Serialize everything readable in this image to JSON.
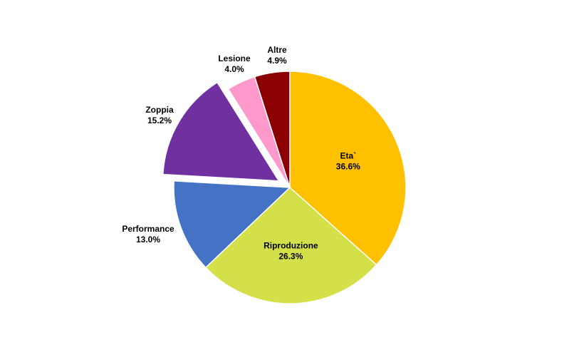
{
  "chart_data": {
    "type": "pie",
    "title": "",
    "slices": [
      {
        "name": "Eta`",
        "value": 36.6,
        "label": "36.6%",
        "color": "#FFC000",
        "exploded": false,
        "label_position": "inside"
      },
      {
        "name": "Riproduzione",
        "value": 26.3,
        "label": "26.3%",
        "color": "#D4E04A",
        "exploded": false,
        "label_position": "inside"
      },
      {
        "name": "Performance",
        "value": 13.0,
        "label": "13.0%",
        "color": "#4472C4",
        "exploded": false,
        "label_position": "outside"
      },
      {
        "name": "Zoppia",
        "value": 15.2,
        "label": "15.2%",
        "color": "#7030A0",
        "exploded": true,
        "label_position": "outside"
      },
      {
        "name": "Lesione",
        "value": 4.0,
        "label": "4.0%",
        "color": "#FF99CC",
        "exploded": false,
        "label_position": "outside"
      },
      {
        "name": "Altre",
        "value": 4.9,
        "label": "4.9%",
        "color": "#8B0000",
        "exploded": false,
        "label_position": "outside"
      }
    ],
    "start_angle": "12 o'clock",
    "direction": "clockwise",
    "legend": "none"
  }
}
